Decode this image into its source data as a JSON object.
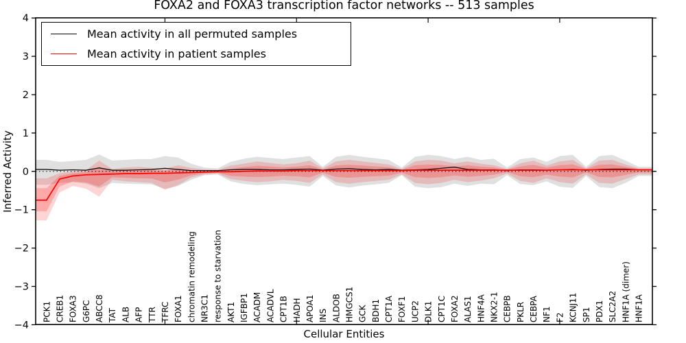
{
  "title": "FOXA2 and FOXA3 transcription factor networks -- 513 samples",
  "axes": {
    "xlabel": "Cellular Entities",
    "ylabel": "Inferred Activity"
  },
  "legend": {
    "position": "upper left",
    "items": [
      {
        "label": "Mean activity in all permuted samples",
        "color": "#000000"
      },
      {
        "label": "Mean activity in patient samples",
        "color": "#ff0000"
      }
    ]
  },
  "chart_data": {
    "type": "line",
    "title": "FOXA2 and FOXA3 transcription factor networks -- 513 samples",
    "xlabel": "Cellular Entities",
    "ylabel": "Inferred Activity",
    "ylim": [
      -4,
      4
    ],
    "yticks": [
      -4,
      -3,
      -2,
      -1,
      0,
      1,
      2,
      3,
      4
    ],
    "grid": false,
    "zero_reference_line": "dotted black at y=0",
    "legend_position": "upper left",
    "categories": [
      "PCK1",
      "CREB1",
      "FOXA3",
      "G6PC",
      "ABCC8",
      "TAT",
      "ALB",
      "AFP",
      "TTR",
      "TFRC",
      "FOXA1",
      "chromatin remodeling",
      "NR3C1",
      "response to starvation",
      "AKT1",
      "IGFBP1",
      "ACADM",
      "ACADVL",
      "CPT1B",
      "HADH",
      "APOA1",
      "INS",
      "ALDOB",
      "HMGCS1",
      "GCK",
      "BDH1",
      "CPT1A",
      "FOXF1",
      "UCP2",
      "DLK1",
      "CPT1C",
      "FOXA2",
      "ALAS1",
      "HNF4A",
      "NKX2-1",
      "CEBPB",
      "PKLR",
      "CEBPA",
      "NF1",
      "F2",
      "KCNJ11",
      "SP1",
      "PDX1",
      "SLC2A2",
      "HNF1A (dimer)",
      "HNF1A"
    ],
    "series": [
      {
        "name": "Mean activity in all permuted samples",
        "color": "#000000",
        "band_color": "rgba(0,0,0,0.12)",
        "values": [
          0.05,
          0.03,
          0.04,
          0.03,
          0.09,
          0.03,
          0.03,
          0.04,
          0.05,
          0.08,
          0.05,
          0.02,
          0.02,
          0.02,
          0.04,
          0.05,
          0.05,
          0.04,
          0.04,
          0.05,
          0.06,
          0.03,
          0.06,
          0.07,
          0.05,
          0.04,
          0.05,
          0.03,
          0.04,
          0.05,
          0.08,
          0.11,
          0.05,
          0.04,
          0.04,
          0.02,
          0.04,
          0.04,
          0.03,
          0.04,
          0.05,
          0.03,
          0.05,
          0.06,
          0.06,
          0.04
        ],
        "band_upper": [
          0.3,
          0.25,
          0.27,
          0.3,
          0.44,
          0.28,
          0.3,
          0.32,
          0.32,
          0.4,
          0.36,
          0.2,
          0.1,
          0.08,
          0.25,
          0.33,
          0.38,
          0.35,
          0.32,
          0.36,
          0.4,
          0.12,
          0.38,
          0.43,
          0.38,
          0.34,
          0.3,
          0.1,
          0.38,
          0.43,
          0.4,
          0.32,
          0.38,
          0.3,
          0.33,
          0.1,
          0.32,
          0.36,
          0.25,
          0.4,
          0.43,
          0.12,
          0.4,
          0.43,
          0.28,
          0.12
        ],
        "band_lower": [
          -0.35,
          -0.3,
          -0.28,
          -0.32,
          -0.44,
          -0.3,
          -0.32,
          -0.33,
          -0.34,
          -0.46,
          -0.38,
          -0.22,
          -0.1,
          -0.08,
          -0.26,
          -0.33,
          -0.36,
          -0.34,
          -0.32,
          -0.35,
          -0.4,
          -0.12,
          -0.37,
          -0.42,
          -0.37,
          -0.34,
          -0.3,
          -0.1,
          -0.4,
          -0.44,
          -0.41,
          -0.32,
          -0.38,
          -0.32,
          -0.34,
          -0.1,
          -0.33,
          -0.36,
          -0.26,
          -0.4,
          -0.43,
          -0.12,
          -0.41,
          -0.44,
          -0.3,
          -0.12
        ]
      },
      {
        "name": "Mean activity in patient samples",
        "color": "#ff0000",
        "band_color": "rgba(255,0,0,0.17)",
        "values": [
          -0.75,
          -0.2,
          -0.12,
          -0.09,
          -0.08,
          -0.07,
          -0.06,
          -0.06,
          -0.05,
          -0.05,
          -0.04,
          -0.03,
          -0.02,
          -0.01,
          -0.01,
          0.0,
          0.01,
          0.01,
          0.01,
          0.02,
          0.02,
          0.02,
          0.02,
          0.02,
          0.02,
          0.02,
          0.02,
          0.02,
          0.03,
          0.03,
          0.03,
          0.03,
          0.03,
          0.03,
          0.03,
          0.03,
          0.03,
          0.03,
          0.03,
          0.04,
          0.04,
          0.04,
          0.04,
          0.04,
          0.04,
          0.04
        ],
        "band_upper": [
          -0.18,
          -0.05,
          0.0,
          0.03,
          0.28,
          0.06,
          0.1,
          0.12,
          0.09,
          0.07,
          0.16,
          0.09,
          0.05,
          0.04,
          0.15,
          0.2,
          0.26,
          0.22,
          0.18,
          0.21,
          0.28,
          0.08,
          0.26,
          0.3,
          0.26,
          0.22,
          0.18,
          0.06,
          0.26,
          0.3,
          0.28,
          0.21,
          0.26,
          0.2,
          0.16,
          0.06,
          0.21,
          0.28,
          0.15,
          0.26,
          0.3,
          0.08,
          0.28,
          0.3,
          0.18,
          0.08
        ],
        "band_lower": [
          -1.28,
          -0.55,
          -0.38,
          -0.45,
          -0.66,
          -0.22,
          -0.26,
          -0.28,
          -0.3,
          -0.48,
          -0.36,
          -0.16,
          -0.08,
          -0.06,
          -0.2,
          -0.25,
          -0.28,
          -0.26,
          -0.22,
          -0.25,
          -0.3,
          -0.08,
          -0.28,
          -0.32,
          -0.28,
          -0.25,
          -0.22,
          -0.08,
          -0.3,
          -0.34,
          -0.3,
          -0.22,
          -0.28,
          -0.24,
          -0.18,
          -0.06,
          -0.25,
          -0.3,
          -0.18,
          -0.28,
          -0.32,
          -0.08,
          -0.3,
          -0.32,
          -0.2,
          -0.08
        ]
      }
    ],
    "sample_count_note": "513 samples"
  }
}
